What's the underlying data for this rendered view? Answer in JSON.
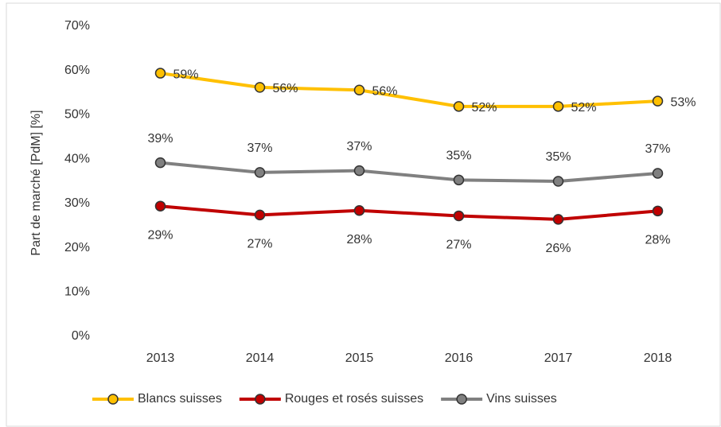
{
  "chart_data": {
    "type": "line",
    "y_label": "Part de marché [PdM] [%]",
    "categories": [
      "2013",
      "2014",
      "2015",
      "2016",
      "2017",
      "2018"
    ],
    "series": [
      {
        "name": "Blancs suisses",
        "color": "#FFC000",
        "values": [
          59.4,
          56.2,
          55.6,
          51.9,
          51.9,
          53.1
        ],
        "value_labels": [
          "59%",
          "56%",
          "56%",
          "52%",
          "52%",
          "53%"
        ]
      },
      {
        "name": "Rouges et rosés suisses",
        "color": "#C00000",
        "values": [
          29.4,
          27.4,
          28.4,
          27.2,
          26.4,
          28.3
        ],
        "value_labels": [
          "29%",
          "27%",
          "28%",
          "27%",
          "26%",
          "28%"
        ]
      },
      {
        "name": "Vins suisses",
        "color": "#808080",
        "values": [
          39.2,
          37.0,
          37.4,
          35.3,
          35.0,
          36.8
        ],
        "value_labels": [
          "39%",
          "37%",
          "37%",
          "35%",
          "35%",
          "37%"
        ]
      }
    ],
    "ylim": [
      0,
      70
    ],
    "yticks": [
      {
        "value": 0,
        "label": "0%"
      },
      {
        "value": 10,
        "label": "10%"
      },
      {
        "value": 20,
        "label": "20%"
      },
      {
        "value": 30,
        "label": "30%"
      },
      {
        "value": 40,
        "label": "40%"
      },
      {
        "value": 50,
        "label": "50%"
      },
      {
        "value": 60,
        "label": "60%"
      },
      {
        "value": 70,
        "label": "70%"
      }
    ],
    "grid": false,
    "legend": "bottom"
  }
}
